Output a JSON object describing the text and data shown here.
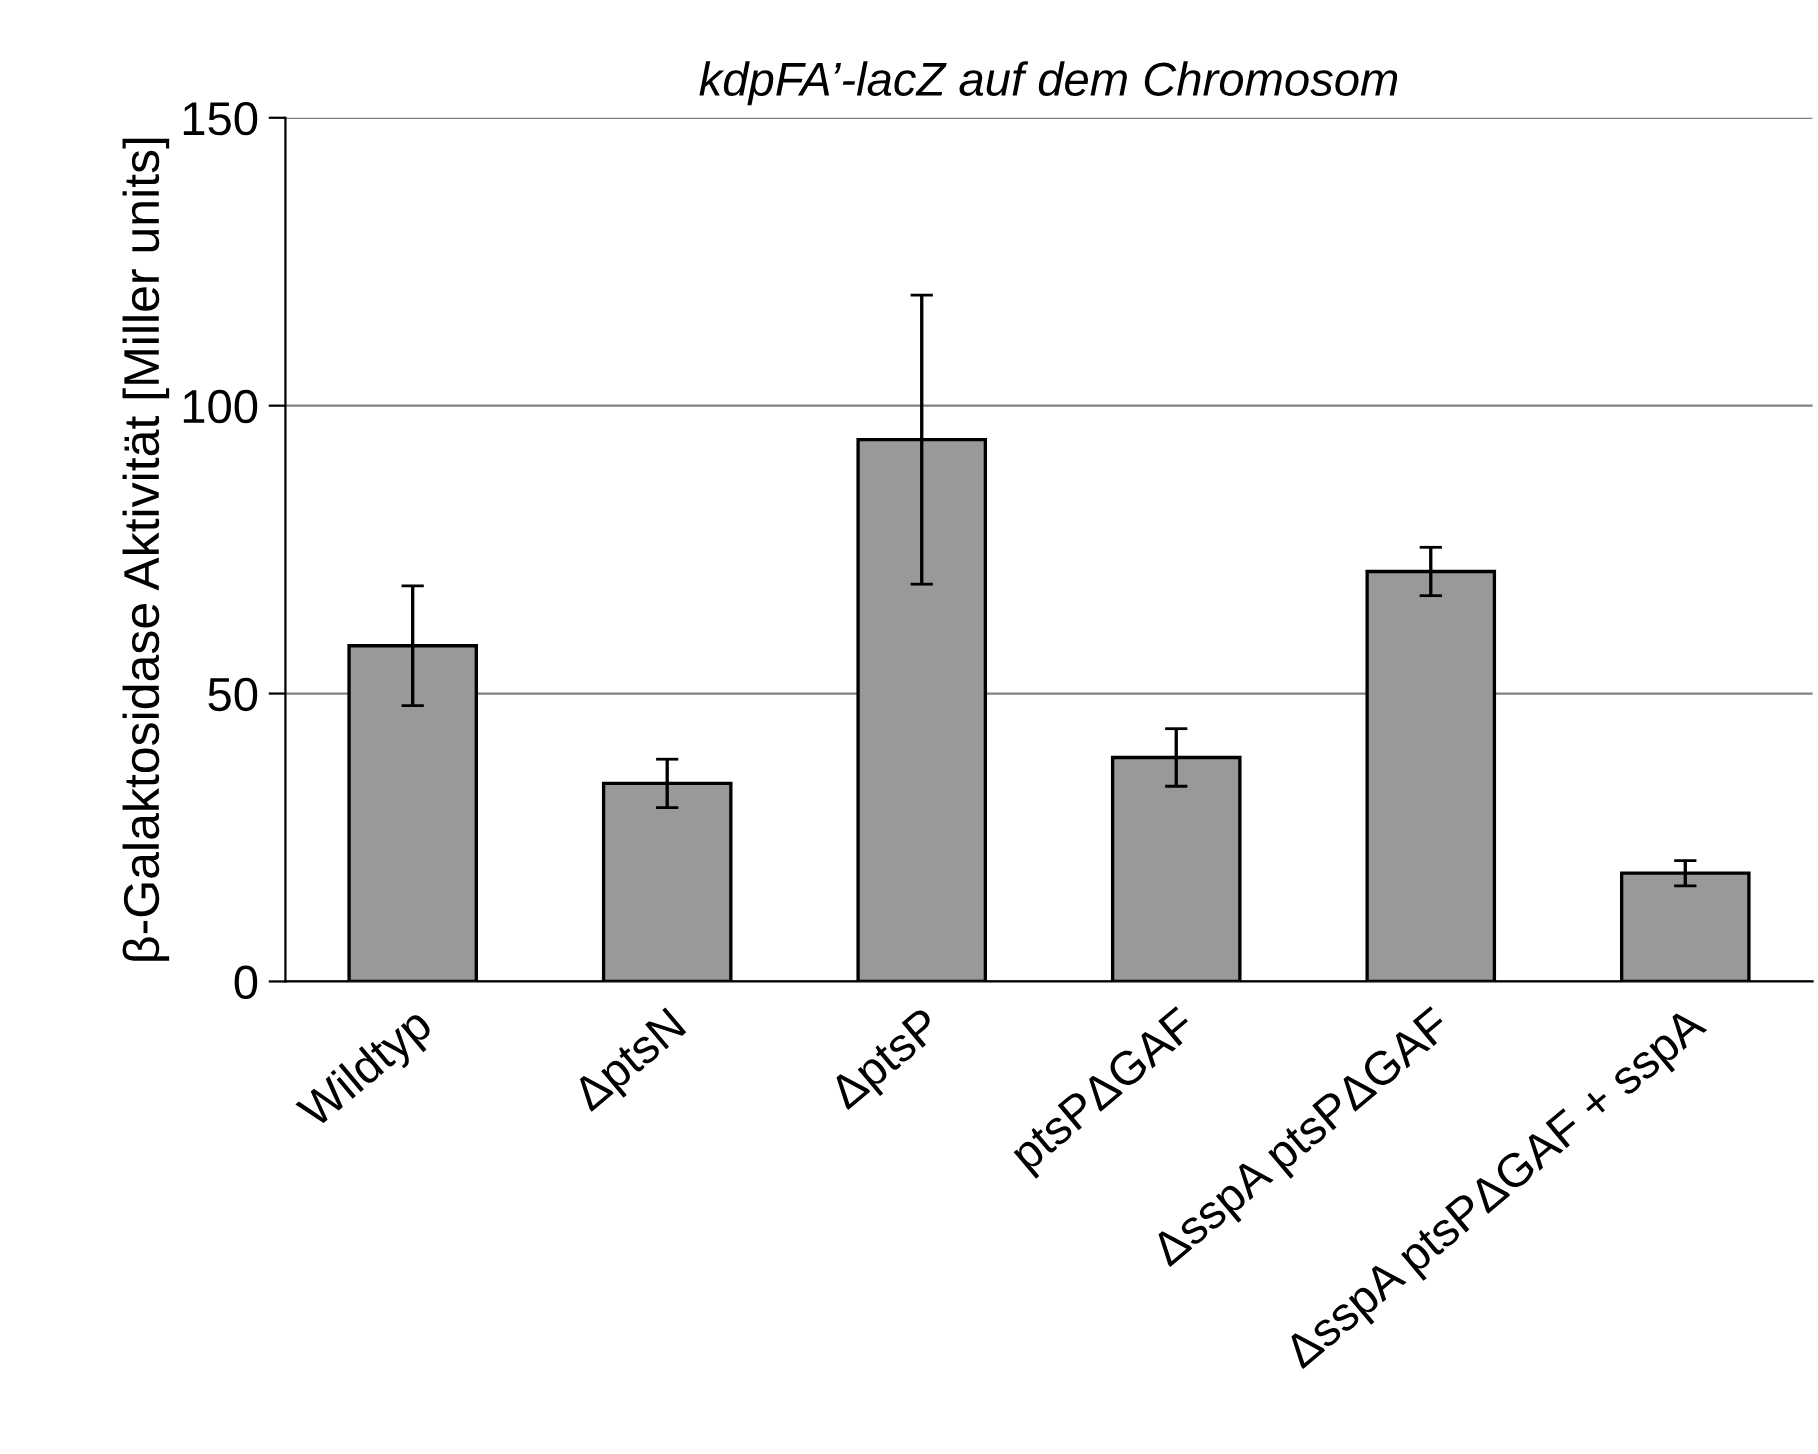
{
  "chart_data": {
    "type": "bar",
    "title": "kdpFA’-lacZ auf dem Chromosom",
    "ylabel": "β-Galaktosidase Aktivität [Miller units]",
    "categories": [
      "Wildtyp",
      "ΔptsN",
      "ΔptsP",
      "ptsPΔGAF",
      "ΔsspA ptsPΔGAF",
      "ΔsspA ptsPΔGAF + sspA"
    ],
    "values": [
      58.3,
      34.4,
      94.1,
      38.9,
      71.2,
      18.8
    ],
    "errors": [
      10.4,
      4.2,
      25.1,
      5.0,
      4.2,
      2.2
    ],
    "color": "#999999",
    "ylim": [
      0,
      150
    ],
    "yticks": [
      0,
      50,
      100,
      150
    ],
    "grid": "y"
  }
}
